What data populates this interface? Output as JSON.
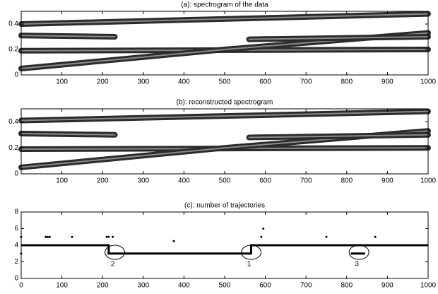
{
  "chart_data": [
    {
      "type": "line",
      "title": "(a): spectrogram of the data",
      "color": "#2b2b2b",
      "xlim": [
        0,
        1000
      ],
      "xticks": [
        100,
        200,
        300,
        400,
        500,
        600,
        700,
        800,
        900,
        1000
      ],
      "ylim": [
        0,
        0.5
      ],
      "yticks": [
        0,
        0.2,
        0.4
      ],
      "series": [
        {
          "x": [
            0,
            1000
          ],
          "values": [
            0.4,
            0.48
          ]
        },
        {
          "x": [
            0,
            230
          ],
          "values": [
            0.31,
            0.3
          ]
        },
        {
          "x": [
            0,
            1000
          ],
          "values": [
            0.19,
            0.2
          ]
        },
        {
          "x": [
            0,
            500,
            1000
          ],
          "values": [
            0.05,
            0.2,
            0.33
          ]
        },
        {
          "x": [
            560,
            1000
          ],
          "values": [
            0.28,
            0.3
          ]
        }
      ]
    },
    {
      "type": "line",
      "title": "(b): reconstructed spectrogram",
      "color": "#2b2b2b",
      "xlim": [
        0,
        1000
      ],
      "xticks": [
        100,
        200,
        300,
        400,
        500,
        600,
        700,
        800,
        900,
        1000
      ],
      "ylim": [
        0,
        0.5
      ],
      "yticks": [
        0,
        0.2,
        0.4
      ],
      "series": [
        {
          "x": [
            0,
            1000
          ],
          "values": [
            0.41,
            0.48
          ]
        },
        {
          "x": [
            0,
            230
          ],
          "values": [
            0.31,
            0.3
          ]
        },
        {
          "x": [
            0,
            1000
          ],
          "values": [
            0.19,
            0.2
          ]
        },
        {
          "x": [
            0,
            500,
            1000
          ],
          "values": [
            0.05,
            0.2,
            0.33
          ]
        },
        {
          "x": [
            560,
            1000
          ],
          "values": [
            0.28,
            0.3
          ]
        }
      ]
    },
    {
      "type": "step",
      "title": "(c): number of trajectories",
      "color": "#000000",
      "xlim": [
        0,
        1000
      ],
      "xticks": [
        0,
        100,
        200,
        300,
        400,
        500,
        600,
        700,
        800,
        900,
        1000
      ],
      "ylim": [
        0,
        8
      ],
      "yticks": [
        0,
        2,
        4,
        6,
        8
      ],
      "series": [
        {
          "x": [
            0,
            215,
            215,
            565,
            565,
            1000
          ],
          "values": [
            4,
            4,
            3,
            3,
            4,
            4
          ]
        },
        {
          "x": [
            810,
            845
          ],
          "values": [
            3,
            3
          ]
        }
      ],
      "points": {
        "x": [
          0,
          0,
          60,
          65,
          70,
          125,
          210,
          215,
          225,
          375,
          590,
          595,
          750,
          870
        ],
        "values": [
          3,
          5,
          5,
          5,
          5,
          5,
          5,
          5,
          5,
          4.5,
          5,
          6,
          5,
          5
        ]
      },
      "annotations": [
        {
          "text": "2",
          "x": 225,
          "y": 1.7
        },
        {
          "text": "1",
          "x": 560,
          "y": 1.7
        },
        {
          "text": "3",
          "x": 825,
          "y": 1.7
        }
      ]
    }
  ]
}
